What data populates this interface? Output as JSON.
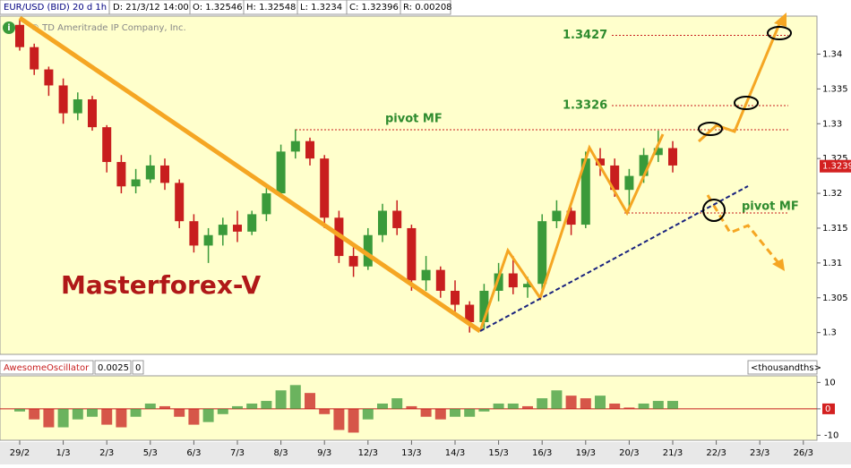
{
  "header": {
    "symbol": "EUR/USD (BID) 20 d 1h",
    "date": "D: 21/3/12 14:00",
    "open": "O: 1.32546",
    "high": "H: 1.32548",
    "low": "L: 1.3234",
    "close": "C: 1.32396",
    "range": "R: 0.00208"
  },
  "chart_data": [
    {
      "type": "candlestick",
      "copyright": "© TD Ameritrade IP Company, Inc.",
      "watermark": "Masterforex-V",
      "annotations": [
        "pivot MF",
        "pivot MF"
      ],
      "levels": [
        1.3427,
        1.3326
      ],
      "last_price": 1.3239,
      "categories": [
        "29/2",
        "1/3",
        "2/3",
        "5/3",
        "6/3",
        "7/3",
        "8/3",
        "9/3",
        "12/3",
        "13/3",
        "14/3",
        "15/3",
        "16/3",
        "19/3",
        "20/3",
        "21/3",
        "22/3",
        "23/3",
        "26/3"
      ],
      "open": [
        1.3442,
        1.341,
        1.3378,
        1.3355,
        1.3315,
        1.3335,
        1.3295,
        1.3245,
        1.321,
        1.322,
        1.324,
        1.3215,
        1.316,
        1.3125,
        1.314,
        1.3155,
        1.3145,
        1.317,
        1.32,
        1.326,
        1.3275,
        1.325,
        1.3165,
        1.311,
        1.3095,
        1.314,
        1.3175,
        1.315,
        1.3075,
        1.309,
        1.306,
        1.304,
        1.3015,
        1.306,
        1.3085,
        1.3065,
        1.307,
        1.316,
        1.3175,
        1.3155,
        1.325,
        1.324,
        1.3205,
        1.3225,
        1.3255,
        1.3265
      ],
      "high": [
        1.345,
        1.3415,
        1.3382,
        1.3365,
        1.3345,
        1.334,
        1.3298,
        1.3255,
        1.3235,
        1.3255,
        1.325,
        1.322,
        1.317,
        1.315,
        1.3165,
        1.3175,
        1.3175,
        1.321,
        1.327,
        1.3292,
        1.328,
        1.3255,
        1.3175,
        1.3125,
        1.315,
        1.3185,
        1.319,
        1.3155,
        1.311,
        1.3095,
        1.3075,
        1.3045,
        1.307,
        1.31,
        1.311,
        1.308,
        1.317,
        1.319,
        1.318,
        1.326,
        1.3265,
        1.325,
        1.3235,
        1.3265,
        1.329,
        1.3275
      ],
      "low": [
        1.3405,
        1.337,
        1.334,
        1.33,
        1.3305,
        1.329,
        1.323,
        1.32,
        1.32,
        1.3215,
        1.3205,
        1.315,
        1.3115,
        1.31,
        1.3125,
        1.313,
        1.314,
        1.316,
        1.3195,
        1.325,
        1.324,
        1.315,
        1.31,
        1.308,
        1.309,
        1.313,
        1.314,
        1.306,
        1.306,
        1.305,
        1.303,
        1.3,
        1.3005,
        1.3045,
        1.3055,
        1.305,
        1.306,
        1.315,
        1.314,
        1.315,
        1.3225,
        1.3195,
        1.3175,
        1.3215,
        1.3245,
        1.323
      ],
      "close": [
        1.341,
        1.3378,
        1.3355,
        1.3315,
        1.3335,
        1.3295,
        1.3245,
        1.321,
        1.322,
        1.324,
        1.3215,
        1.316,
        1.3125,
        1.314,
        1.3155,
        1.3145,
        1.317,
        1.32,
        1.326,
        1.3275,
        1.325,
        1.3165,
        1.311,
        1.3095,
        1.314,
        1.3175,
        1.315,
        1.3075,
        1.309,
        1.306,
        1.304,
        1.3015,
        1.306,
        1.3085,
        1.3065,
        1.307,
        1.316,
        1.3175,
        1.3155,
        1.325,
        1.324,
        1.3205,
        1.3225,
        1.3255,
        1.3265,
        1.324
      ],
      "up_color": "#3a9a3a",
      "down_color": "#c81e1e",
      "ylim": [
        1.297,
        1.3452
      ],
      "yticks": [
        1.3,
        1.305,
        1.31,
        1.315,
        1.32,
        1.325,
        1.33,
        1.335,
        1.34
      ]
    },
    {
      "type": "bar",
      "title": "AwesomeOscillator",
      "reading": 0.0025,
      "count": 0,
      "unit": "<thousandths>",
      "values": [
        -1,
        -4,
        -7,
        -7,
        -4,
        -3,
        -6,
        -7,
        -3,
        2,
        1,
        -3,
        -6,
        -5,
        -2,
        1,
        2,
        3,
        7,
        9,
        6,
        -2,
        -8,
        -9,
        -4,
        2,
        4,
        1,
        -3,
        -4,
        -3,
        -3,
        -1,
        2,
        2,
        1,
        4,
        7,
        5,
        4,
        5,
        2,
        0.5,
        2,
        3,
        3
      ],
      "up_color": "#3a9a3a",
      "down_color": "#c81e1e",
      "ylim": [
        -11.9,
        12.5
      ],
      "yticks": [
        10,
        0,
        -10
      ]
    }
  ]
}
